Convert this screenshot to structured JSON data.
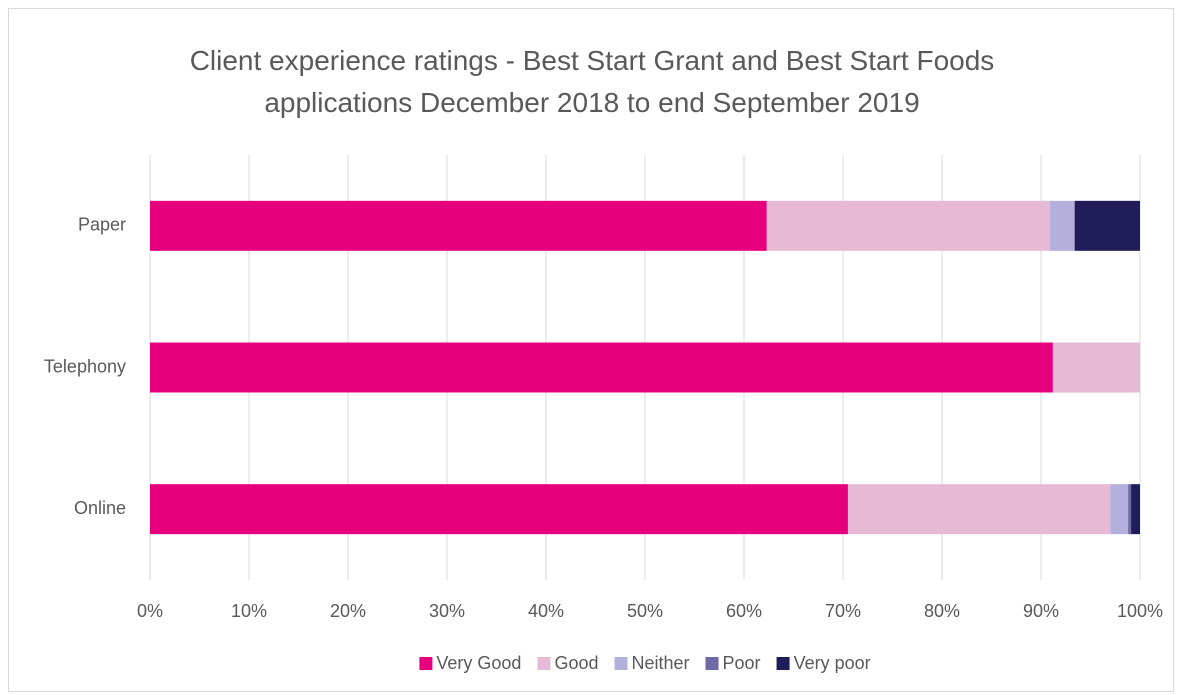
{
  "chart_data": {
    "type": "stacked_bar_horizontal",
    "title": "Client experience ratings - Best Start Grant and Best Start Foods applications December 2018 to end September 2019",
    "categories": [
      "Paper",
      "Telephony",
      "Online"
    ],
    "series": [
      {
        "name": "Very Good",
        "color": "#e6007e",
        "values": [
          62.3,
          91.2,
          70.5
        ]
      },
      {
        "name": "Good",
        "color": "#e6b9d4",
        "values": [
          28.6,
          8.8,
          26.5
        ]
      },
      {
        "name": "Neither",
        "color": "#b3b0dc",
        "values": [
          2.5,
          0,
          1.8
        ]
      },
      {
        "name": "Poor",
        "color": "#6e6aa6",
        "values": [
          0,
          0,
          0.3
        ]
      },
      {
        "name": "Very poor",
        "color": "#211d5a",
        "values": [
          6.6,
          0,
          0.9
        ]
      }
    ],
    "xlim": [
      0,
      100
    ],
    "xticks": [
      {
        "value": 0,
        "label": "0%"
      },
      {
        "value": 10,
        "label": "10%"
      },
      {
        "value": 20,
        "label": "20%"
      },
      {
        "value": 30,
        "label": "30%"
      },
      {
        "value": 40,
        "label": "40%"
      },
      {
        "value": 50,
        "label": "50%"
      },
      {
        "value": 60,
        "label": "60%"
      },
      {
        "value": 70,
        "label": "70%"
      },
      {
        "value": 80,
        "label": "80%"
      },
      {
        "value": 90,
        "label": "90%"
      },
      {
        "value": 100,
        "label": "100%"
      }
    ],
    "grid": true,
    "legend": "bottom"
  }
}
